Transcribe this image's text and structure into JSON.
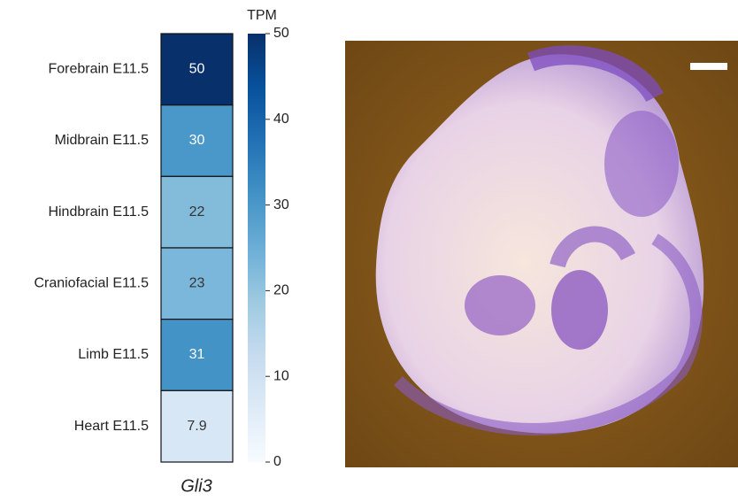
{
  "chart_data": {
    "type": "heatmap",
    "categories": [
      "Forebrain E11.5",
      "Midbrain E11.5",
      "Hindbrain E11.5",
      "Craniofacial E11.5",
      "Limb E11.5",
      "Heart E11.5"
    ],
    "values": [
      50,
      30,
      22,
      23,
      31,
      7.9
    ],
    "xlabel": "Gli3",
    "colorbar_label": "TPM",
    "clim": [
      0,
      50
    ],
    "cticks": [
      0,
      10,
      20,
      30,
      40,
      50
    ],
    "cmap": [
      "#f7fbff",
      "#deebf7",
      "#c6dbef",
      "#9ecae1",
      "#6baed6",
      "#4292c6",
      "#2171b5",
      "#08519c",
      "#08306b"
    ]
  }
}
